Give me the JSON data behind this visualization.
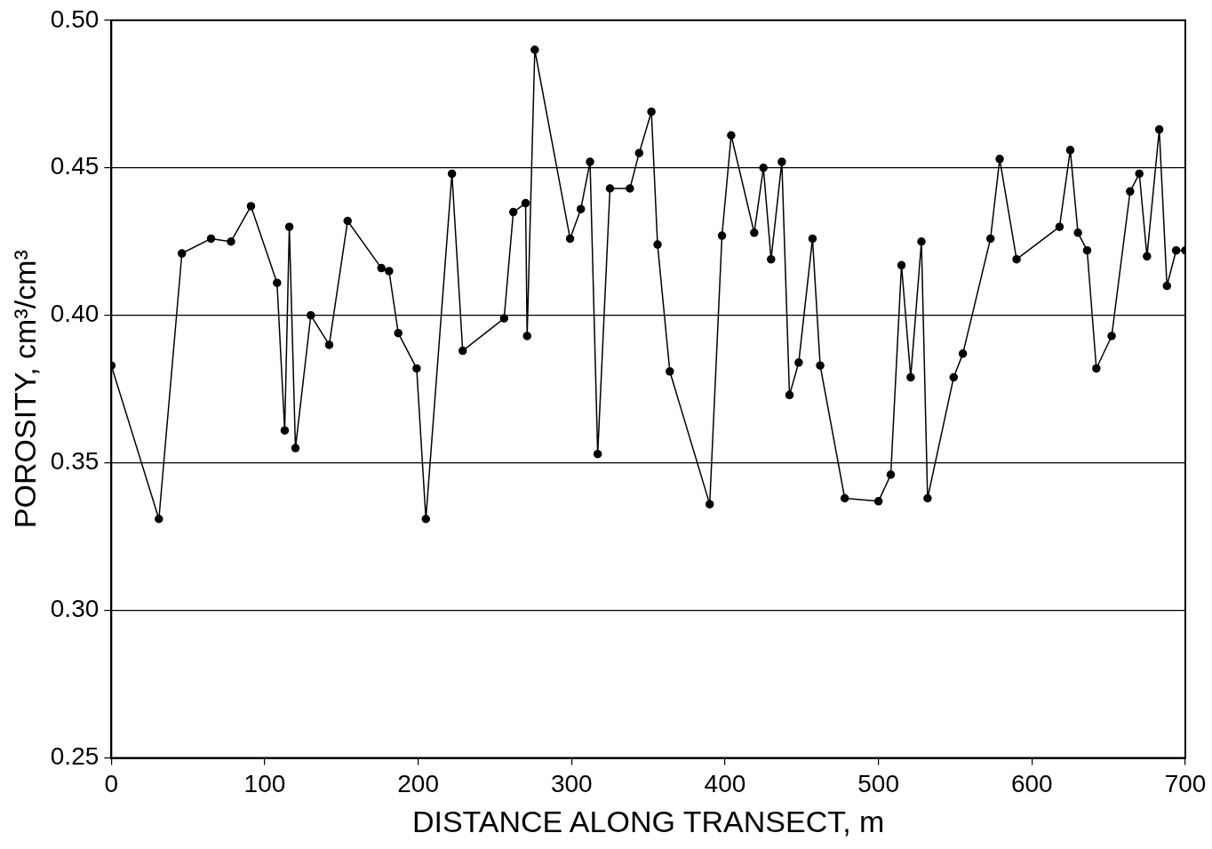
{
  "chart_data": {
    "type": "line",
    "xlabel": "DISTANCE ALONG TRANSECT, m",
    "ylabel": "POROSITY, cm³/cm³",
    "x": [
      0,
      31,
      46,
      65,
      78,
      91,
      108,
      113,
      116,
      120,
      130,
      142,
      154,
      176,
      181,
      187,
      199,
      205,
      222,
      229,
      256,
      262,
      270,
      271,
      276,
      299,
      306,
      312,
      317,
      325,
      338,
      344,
      352,
      356,
      364,
      390,
      398,
      404,
      419,
      425,
      430,
      437,
      442,
      448,
      457,
      462,
      478,
      500,
      508,
      515,
      521,
      528,
      532,
      549,
      555,
      573,
      579,
      590,
      618,
      625,
      630,
      636,
      642,
      652,
      664,
      670,
      675,
      683,
      688,
      694,
      700
    ],
    "series": [
      {
        "color": "#000000",
        "values": [
          0.383,
          0.331,
          0.421,
          0.426,
          0.425,
          0.437,
          0.411,
          0.361,
          0.43,
          0.355,
          0.4,
          0.39,
          0.432,
          0.416,
          0.415,
          0.394,
          0.382,
          0.331,
          0.448,
          0.388,
          0.399,
          0.435,
          0.438,
          0.393,
          0.49,
          0.426,
          0.436,
          0.452,
          0.353,
          0.443,
          0.443,
          0.455,
          0.469,
          0.424,
          0.381,
          0.336,
          0.427,
          0.461,
          0.428,
          0.45,
          0.419,
          0.452,
          0.373,
          0.384,
          0.426,
          0.383,
          0.338,
          0.337,
          0.346,
          0.417,
          0.379,
          0.425,
          0.338,
          0.379,
          0.387,
          0.426,
          0.453,
          0.419,
          0.43,
          0.456,
          0.428,
          0.422,
          0.382,
          0.393,
          0.442,
          0.448,
          0.42,
          0.463,
          0.41,
          0.422,
          0.422
        ]
      }
    ],
    "xlim": [
      0,
      700
    ],
    "xticks": [
      0,
      100,
      200,
      300,
      400,
      500,
      600,
      700
    ],
    "ylim": [
      0.25,
      0.5
    ],
    "yticks": [
      {
        "value": 0.25,
        "label": "0.25"
      },
      {
        "value": 0.3,
        "label": "0.30"
      },
      {
        "value": 0.35,
        "label": "0.35"
      },
      {
        "value": 0.4,
        "label": "0.40"
      },
      {
        "value": 0.45,
        "label": "0.45"
      },
      {
        "value": 0.5,
        "label": "0.50"
      }
    ],
    "grid": "y",
    "marker": "circle",
    "line_style": "solid",
    "legend": false
  }
}
